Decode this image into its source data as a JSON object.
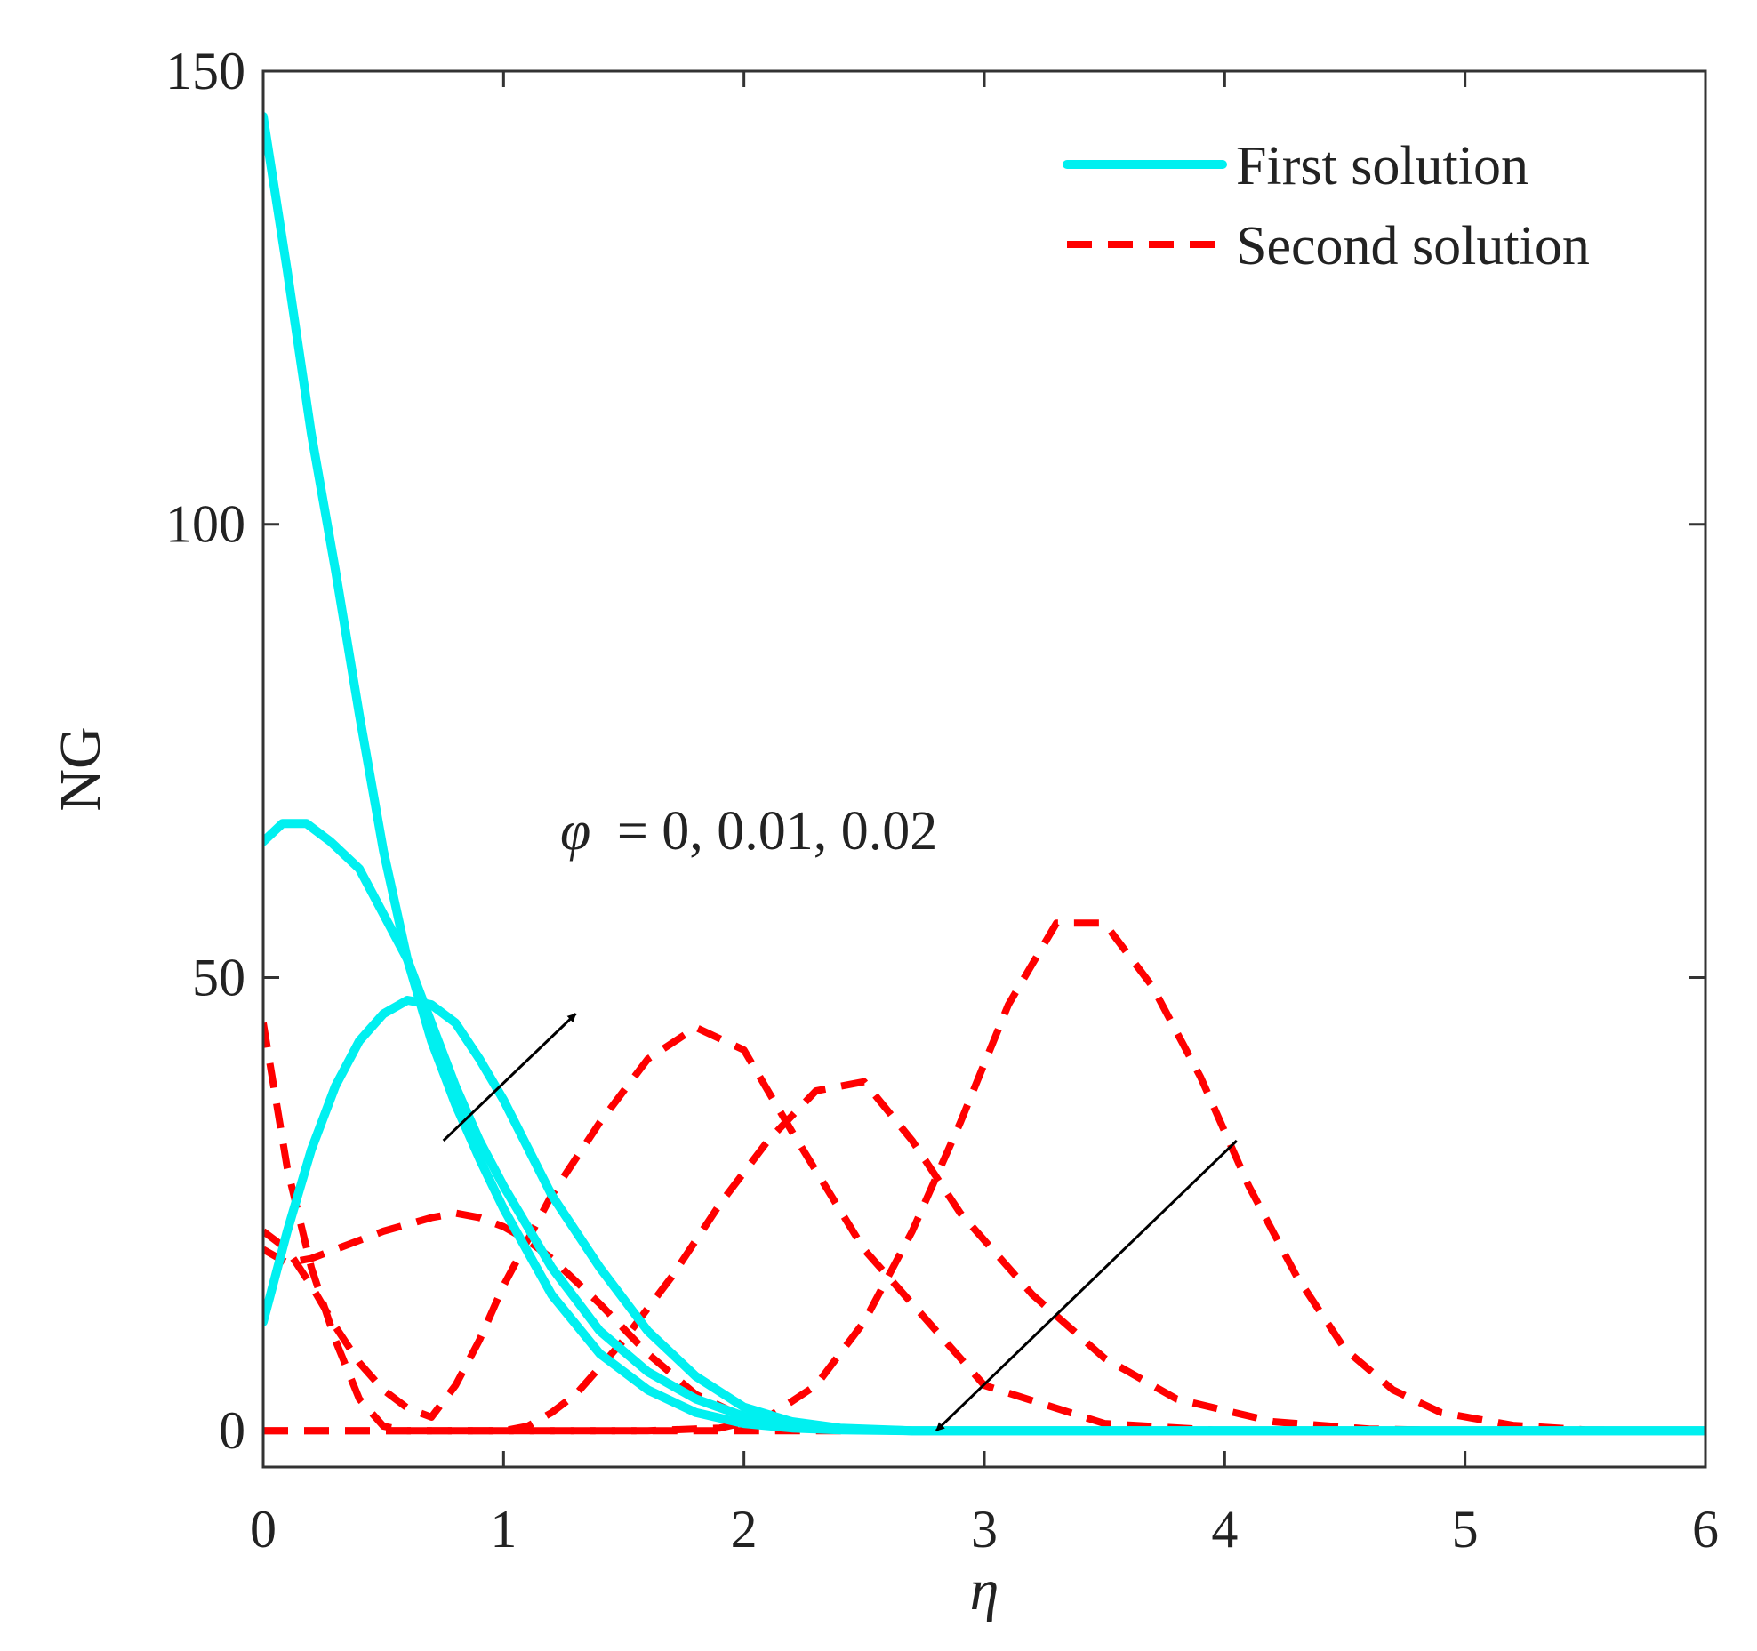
{
  "chart_data": {
    "type": "line",
    "title": "",
    "xlabel": "η",
    "ylabel": "NG",
    "xlim": [
      0,
      6
    ],
    "ylim": [
      -4,
      150
    ],
    "xticks": [
      0,
      1,
      2,
      3,
      4,
      5,
      6
    ],
    "xtick_labels": [
      "0",
      "1",
      "2",
      "3",
      "4",
      "5",
      "6"
    ],
    "yticks": [
      0,
      50,
      100,
      150
    ],
    "ytick_labels": [
      "0",
      "50",
      "100",
      "150"
    ],
    "grid": false,
    "legend": {
      "position": "top-right",
      "entries": [
        {
          "label": "First solution",
          "style": "solid",
          "color": "#00f0f0"
        },
        {
          "label": "Second solution",
          "style": "dashed",
          "color": "#ff0000"
        }
      ]
    },
    "annotations": [
      {
        "text_var": "φ",
        "text_value": "= 0, 0.01, 0.02",
        "arrows": [
          {
            "from": [
              0.75,
              32
            ],
            "to": [
              1.3,
              46
            ]
          },
          {
            "from": [
              4.05,
              32
            ],
            "to": [
              2.8,
              0
            ]
          }
        ]
      }
    ],
    "series": [
      {
        "name": "First solution (φ = 0)",
        "style": "solid",
        "color": "#00f0f0",
        "x": [
          0,
          0.1,
          0.2,
          0.3,
          0.4,
          0.5,
          0.6,
          0.7,
          0.8,
          0.9,
          1.0,
          1.2,
          1.4,
          1.6,
          1.8,
          2.0,
          2.2,
          2.4,
          2.7,
          3.0,
          3.5,
          4.0,
          5.0,
          6.0
        ],
        "y": [
          145,
          128,
          110,
          95,
          79,
          64,
          52,
          43,
          36,
          30,
          24.5,
          15,
          8.5,
          4.5,
          2,
          0.8,
          0.3,
          0.1,
          0,
          0,
          0,
          0,
          0,
          0
        ]
      },
      {
        "name": "First solution (φ = 0.01)",
        "style": "solid",
        "color": "#00f0f0",
        "x": [
          0,
          0.08,
          0.18,
          0.28,
          0.4,
          0.5,
          0.6,
          0.7,
          0.8,
          0.9,
          1.0,
          1.2,
          1.4,
          1.6,
          1.8,
          2.0,
          2.2,
          2.4,
          2.7,
          3.0,
          3.5,
          4.0,
          5.0,
          6.0
        ],
        "y": [
          65,
          67,
          67,
          65,
          62,
          57,
          52,
          45,
          38,
          32,
          27,
          18,
          11,
          6.5,
          3.5,
          1.6,
          0.6,
          0.2,
          0,
          0,
          0,
          0,
          0,
          0
        ]
      },
      {
        "name": "First solution (φ = 0.02)",
        "style": "solid",
        "color": "#00f0f0",
        "x": [
          0,
          0.1,
          0.2,
          0.3,
          0.4,
          0.5,
          0.6,
          0.7,
          0.8,
          0.9,
          1.0,
          1.2,
          1.4,
          1.6,
          1.8,
          2.0,
          2.2,
          2.4,
          2.7,
          3.0,
          3.5,
          4.0,
          5.0,
          6.0
        ],
        "y": [
          12,
          22,
          31,
          38,
          43,
          46,
          47.5,
          47,
          45,
          41,
          36.5,
          26,
          18,
          11,
          6,
          2.6,
          1,
          0.3,
          0,
          0,
          0,
          0,
          0,
          0
        ]
      },
      {
        "name": "Second solution 1",
        "style": "dashed",
        "color": "#ff0000",
        "x": [
          0,
          0.1,
          0.2,
          0.3,
          0.4,
          0.5,
          0.6,
          0.7,
          0.8,
          0.9,
          1.0,
          1.1,
          1.2,
          1.4,
          1.6,
          1.8,
          2.0,
          2.3,
          2.6,
          3.0,
          3.5,
          4.0,
          5.0,
          6.0
        ],
        "y": [
          45,
          29,
          18,
          10,
          3.5,
          0.5,
          0,
          0,
          0,
          0,
          0,
          0,
          0,
          0,
          0,
          0,
          0,
          0,
          0,
          0,
          0,
          0,
          0,
          0
        ]
      },
      {
        "name": "Second solution 2",
        "style": "dashed",
        "color": "#ff0000",
        "x": [
          0,
          0.1,
          0.2,
          0.3,
          0.4,
          0.5,
          0.6,
          0.7,
          0.8,
          0.9,
          1.0,
          1.2,
          1.4,
          1.6,
          1.8,
          2.0,
          2.2,
          2.5,
          3.0,
          3.5,
          4.0,
          5.0,
          6.0
        ],
        "y": [
          22,
          20,
          16,
          11.5,
          7.5,
          4.5,
          2.5,
          1.5,
          5,
          10,
          16,
          26,
          34,
          41,
          44.5,
          42,
          33,
          20,
          5,
          0.8,
          0,
          0,
          0
        ]
      },
      {
        "name": "Second solution 3",
        "style": "dashed",
        "color": "#ff0000",
        "x": [
          0,
          0.1,
          0.2,
          0.3,
          0.5,
          0.7,
          0.8,
          0.9,
          1.0,
          1.1,
          1.2,
          1.4,
          1.6,
          1.8,
          2.0,
          2.2,
          2.5,
          3.0,
          3.5,
          4.0,
          5.0,
          6.0
        ],
        "y": [
          20,
          18.5,
          19,
          20,
          22,
          23.5,
          24,
          23.5,
          22.5,
          21,
          19,
          14,
          8.5,
          4,
          1.5,
          0.5,
          0,
          0,
          0,
          0,
          0,
          0
        ]
      },
      {
        "name": "Second solution 4",
        "style": "dashed",
        "color": "#ff0000",
        "x": [
          0,
          0.5,
          0.9,
          1.0,
          1.1,
          1.2,
          1.3,
          1.5,
          1.7,
          1.9,
          2.1,
          2.3,
          2.5,
          2.7,
          2.9,
          3.2,
          3.5,
          3.8,
          4.2,
          4.6,
          5.0,
          6.0
        ],
        "y": [
          0,
          0,
          0,
          0,
          0.5,
          2,
          4,
          10,
          17,
          25,
          32,
          37.5,
          38.5,
          32,
          24,
          15,
          8,
          3.5,
          1,
          0.2,
          0,
          0
        ]
      },
      {
        "name": "Second solution 5",
        "style": "dashed",
        "color": "#ff0000",
        "x": [
          0,
          1.0,
          1.6,
          1.9,
          2.1,
          2.3,
          2.5,
          2.7,
          2.9,
          3.1,
          3.3,
          3.5,
          3.7,
          3.9,
          4.1,
          4.3,
          4.5,
          4.7,
          4.9,
          5.2,
          5.5,
          6.0
        ],
        "y": [
          0,
          0,
          0,
          0.3,
          1.5,
          5,
          12,
          22,
          34,
          47,
          56,
          56,
          49,
          39,
          27,
          17,
          9,
          4.5,
          2,
          0.6,
          0.1,
          0
        ]
      }
    ]
  }
}
